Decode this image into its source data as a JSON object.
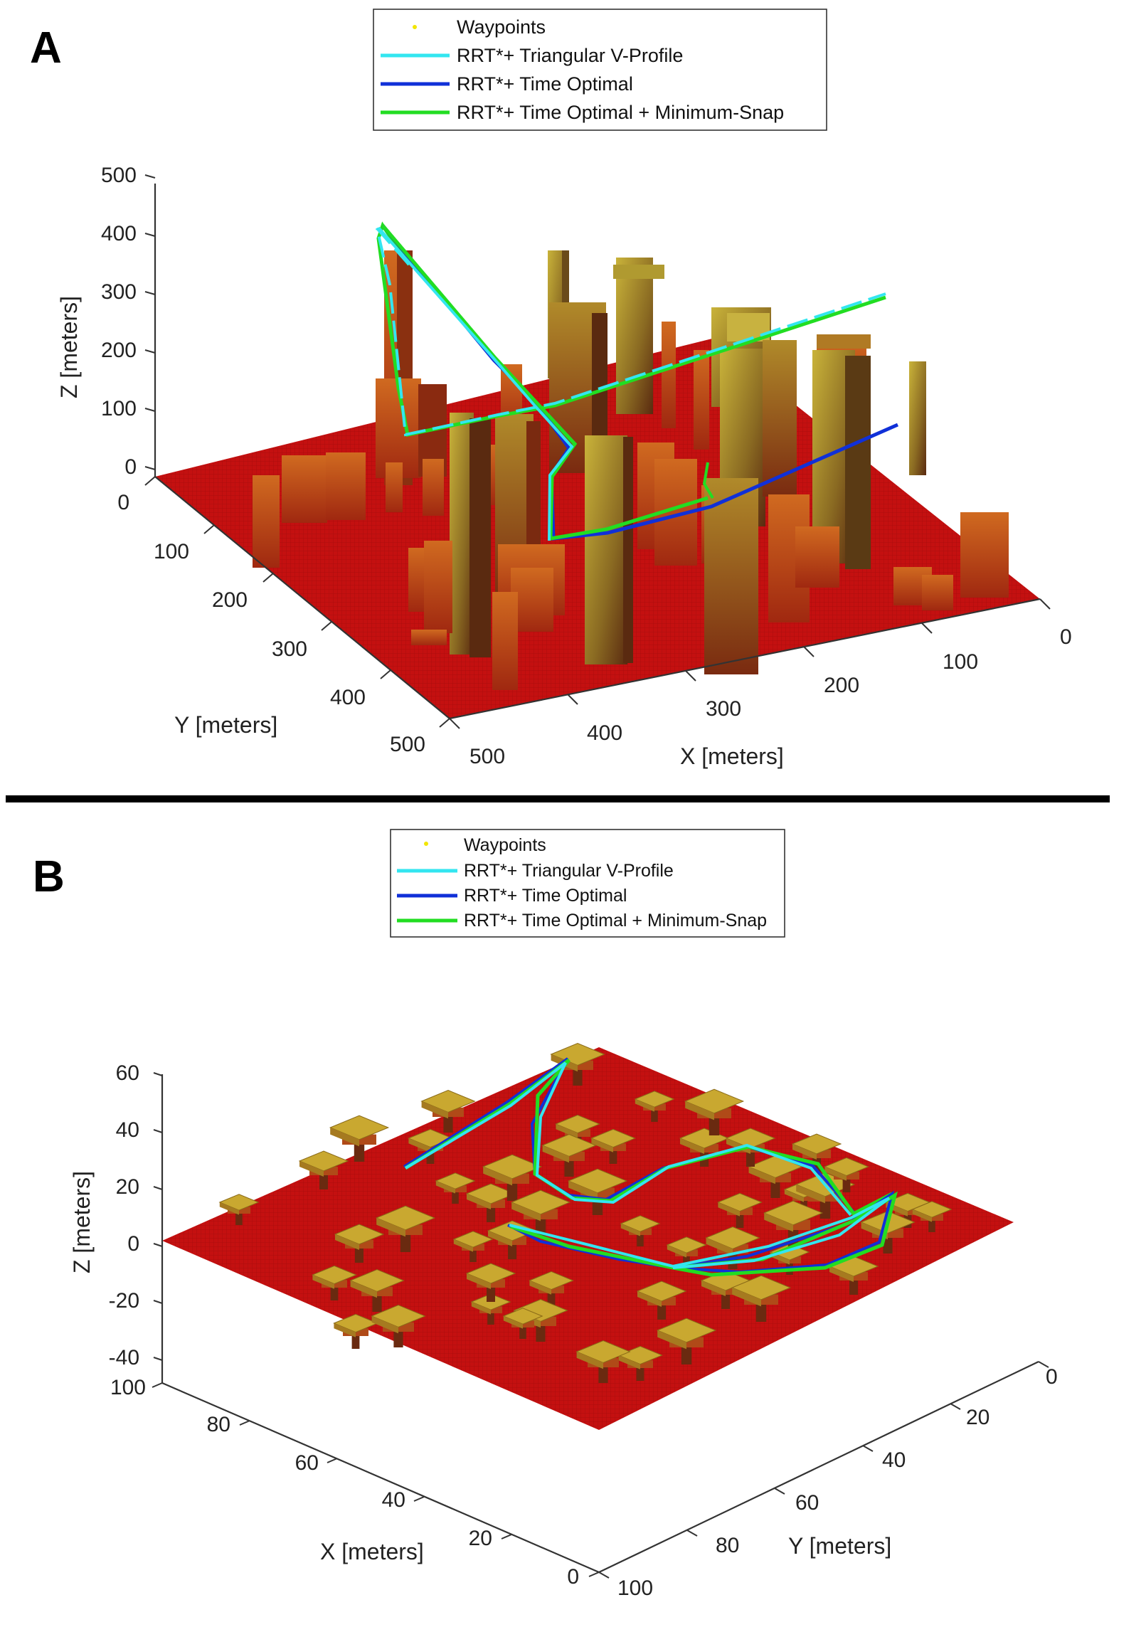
{
  "panels": [
    {
      "letter": "A",
      "legend": [
        "Waypoints",
        "RRT*+ Triangular V-Profile",
        "RRT*+ Time Optimal",
        "RRT*+ Time Optimal + Minimum-Snap"
      ],
      "zlabel": "Z [meters]",
      "ylabel": "Y [meters]",
      "xlabel": "X [meters]",
      "zticks": [
        "0",
        "100",
        "200",
        "300",
        "400",
        "500"
      ],
      "yticks": [
        "0",
        "100",
        "200",
        "300",
        "400",
        "500"
      ],
      "xticks": [
        "0",
        "100",
        "200",
        "300",
        "400",
        "500"
      ]
    },
    {
      "letter": "B",
      "legend": [
        "Waypoints",
        "RRT*+ Triangular V-Profile",
        "RRT*+ Time Optimal",
        "RRT*+ Time Optimal + Minimum-Snap"
      ],
      "zlabel": "Z [meters]",
      "xlabel": "X [meters]",
      "ylabel": "Y [meters]",
      "zticks": [
        "-40",
        "-20",
        "0",
        "20",
        "40",
        "60"
      ],
      "xticks": [
        "100",
        "80",
        "60",
        "40",
        "20",
        "0"
      ],
      "yticks": [
        "0",
        "20",
        "40",
        "60",
        "80",
        "100"
      ]
    }
  ],
  "colors": {
    "waypoints": "#f2e600",
    "v_profile": "#33e6f0",
    "time_optimal": "#1030d8",
    "min_snap": "#22dd22",
    "ground": "#c81010",
    "building": "#b8a030"
  },
  "chart_data": [
    {
      "type": "line",
      "title": "",
      "view": "3d",
      "series": [
        {
          "name": "RRT*+ Triangular V-Profile"
        },
        {
          "name": "RRT*+ Time Optimal"
        },
        {
          "name": "RRT*+ Time Optimal + Minimum-Snap"
        }
      ],
      "xlim": [
        0,
        500
      ],
      "ylim": [
        0,
        500
      ],
      "zlim": [
        0,
        500
      ]
    },
    {
      "type": "line",
      "title": "",
      "view": "3d",
      "series": [
        {
          "name": "RRT*+ Triangular V-Profile"
        },
        {
          "name": "RRT*+ Time Optimal"
        },
        {
          "name": "RRT*+ Time Optimal + Minimum-Snap"
        }
      ],
      "xlim": [
        0,
        100
      ],
      "ylim": [
        0,
        100
      ],
      "zlim": [
        -40,
        60
      ]
    }
  ]
}
